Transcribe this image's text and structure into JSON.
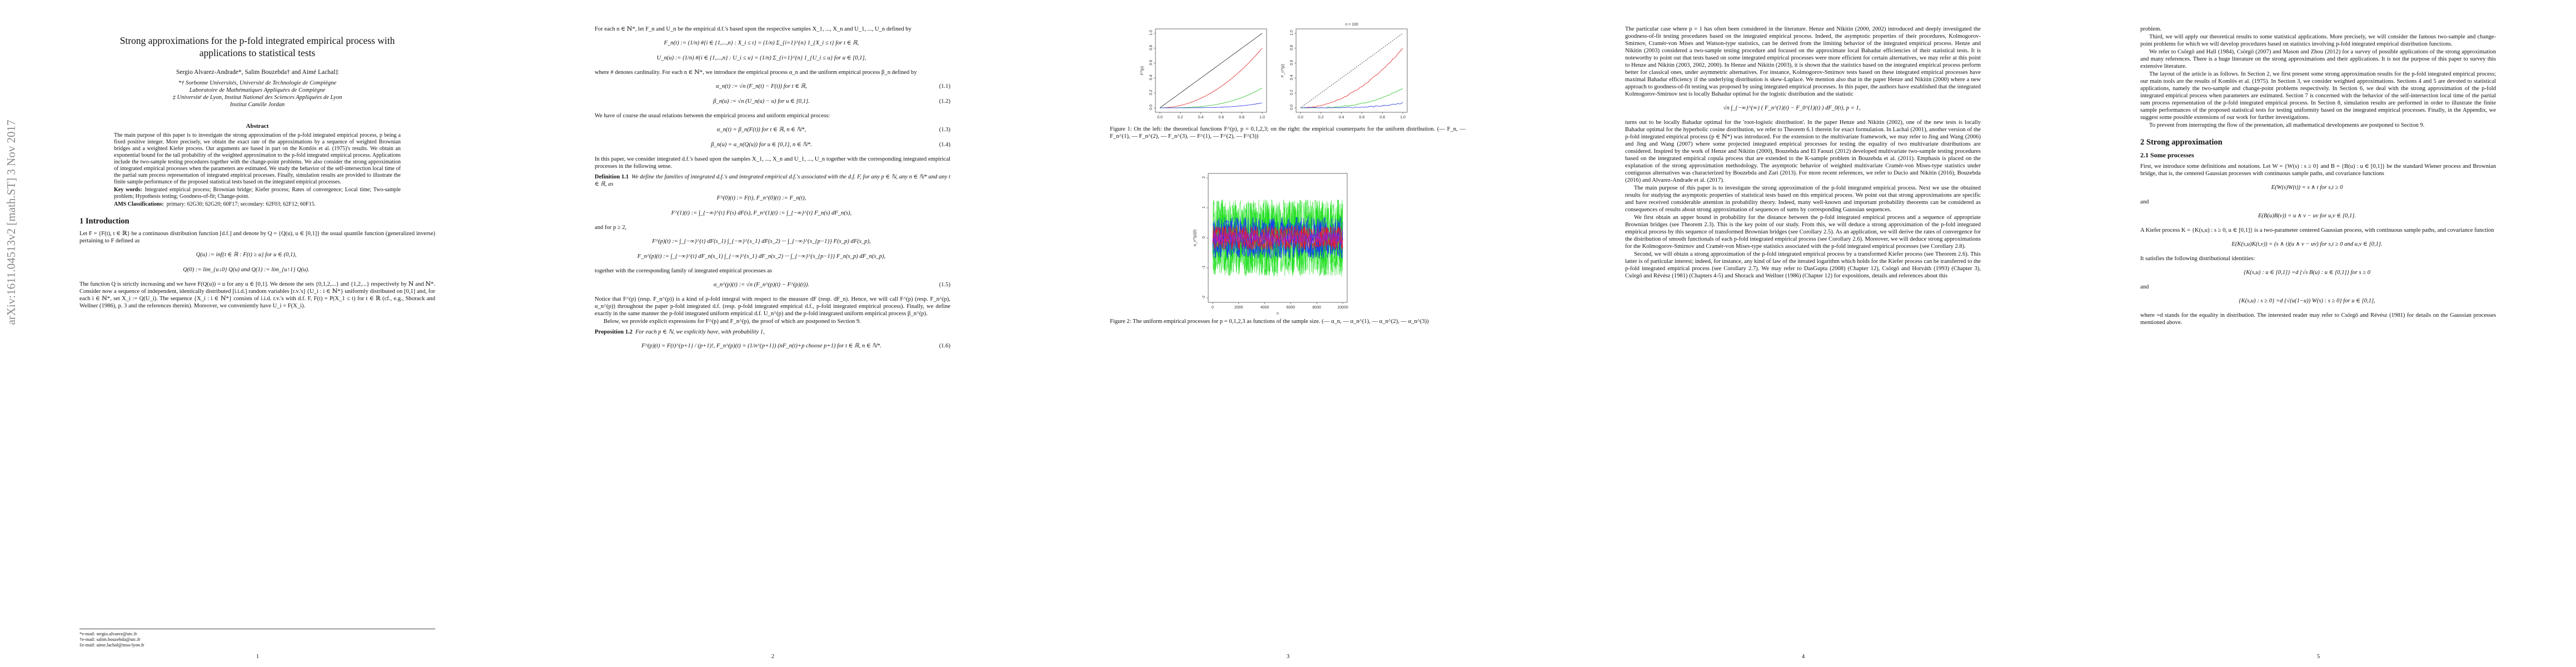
{
  "stamp": "arXiv:1611.04513v2  [math.ST]  3 Nov 2017",
  "pages": [
    {
      "blocks": [
        {
          "title": "Strong approximations for the p-fold integrated empirical process with applications to statistical tests"
        },
        {
          "authors": "Sergio Alvarez-Andrade*,   Salim Bouzebda†   and   Aimé Lachal‡"
        },
        {
          "center": "*† Sorbonne Universités, Université de Technologie de Compiègne"
        },
        {
          "center": "Laboratoire de Mathématiques Appliquées de Compiègne"
        },
        {
          "center": "‡ Université de Lyon, Institut National des Sciences Appliquées de Lyon"
        },
        {
          "center": "Institut Camille Jordan"
        },
        {
          "h3": "Abstract"
        },
        {
          "abstract": "The main purpose of this paper is to investigate the strong approximation of the p-fold integrated empirical process, p being a fixed positive integer. More precisely, we obtain the exact rate of the approximations by a sequence of weighted Brownian bridges and a weighted Kiefer process. Our arguments are based in part on the Komlós et al. (1975)'s results. We obtain an exponential bound for the tail probability of the weighted approximation to the p-fold integrated empirical process. Applications include the two-sample testing procedures together with the change-point problems. We also consider the strong approximation of integrated empirical processes when the parameters are estimated. We study the behavior of the self-intersection local time of the partial sum process representation of integrated empirical processes. Finally, simulation results are provided to illustrate the finite sample performance of the proposed statistical tests based on the integrated empirical processes."
        },
        {
          "lead": "Key words:",
          "abstract": "Integrated empirical process; Brownian bridge; Kiefer process; Rates of convergence; Local time; Two-sample problem; Hypothesis testing; Goodness-of-fit; Change-point."
        },
        {
          "lead": "AMS Classifications:",
          "abstract": "primary: 62G30; 62G20; 60F17; secondary: 62F03; 62F12; 60F15."
        },
        {
          "h1": "1   Introduction"
        },
        {
          "p": "Let F = {F(t), t ∈ ℝ} be a continuous distribution function [d.f.] and denote by Q = {Q(u), u ∈ [0,1]} the usual quantile function (generalized inverse) pertaining to F defined as"
        },
        {
          "eq": "Q(u) := inf{t ∈ ℝ : F(t) ≥ u}   for   u ∈ (0,1),"
        },
        {
          "eq": "Q(0) := lim_{u↓0} Q(u)   and   Q(1) := lim_{u↑1} Q(u)."
        },
        {
          "p": "The function Q is strictly increasing and we have F(Q(u)) = u for any u ∈ [0,1]. We denote the sets {0,1,2,...} and {1,2,...} respectively by ℕ and ℕ*. Consider now a sequence of independent, identically distributed [i.i.d.] random variables [r.v.'s] {U_i : i ∈ ℕ*} uniformly distributed on [0,1] and, for each i ∈ ℕ*, set X_i := Q(U_i). The sequence {X_i : i ∈ ℕ*} consists of i.i.d. r.v.'s with d.f. F, F(t) = P(X_1 ≤ t) for t ∈ ℝ (cf., e.g., Shorack and Wellner (1986), p. 3 and the references therein). Moreover, we conveniently have U_i = F(X_i)."
        }
      ],
      "footnotes": [
        "*e-mail: sergio.alvarez@utc.fr",
        "†e-mail: salim.bouzebda@utc.fr",
        "‡e-mail: aime.lachal@insa-lyon.fr"
      ],
      "number": "1"
    },
    {
      "blocks": [
        {
          "p": "For each n ∈ ℕ*, let F_n and U_n be the empirical d.f.'s based upon the respective samples X_1, ..., X_n and U_1, ..., U_n defined by"
        },
        {
          "eq": "F_n(t) := (1/n) #{i ∈ {1,...,n} : X_i ≤ t} = (1/n) Σ_{i=1}^{n} 1_{X_i ≤ t}   for   t ∈ ℝ,"
        },
        {
          "eq": "U_n(u) := (1/n) #{i ∈ {1,...,n} : U_i ≤ u} = (1/n) Σ_{i=1}^{n} 1_{U_i ≤ u}   for   u ∈ [0,1],"
        },
        {
          "p": "where # denotes cardinality. For each n ∈ ℕ*, we introduce the empirical process α_n and the uniform empirical process β_n defined by"
        },
        {
          "eq": "α_n(t) := √n (F_n(t) − F(t))   for   t ∈ ℝ,",
          "num": "(1.1)"
        },
        {
          "eq": "β_n(u) := √n (U_n(u) − u)   for   u ∈ [0,1].",
          "num": "(1.2)"
        },
        {
          "p": "We have of course the usual relations between the empirical process and uniform empirical process:"
        },
        {
          "eq": "α_n(t) = β_n(F(t))   for   t ∈ ℝ, n ∈ ℕ*,",
          "num": "(1.3)"
        },
        {
          "eq": "β_n(u) = α_n(Q(u))   for   u ∈ [0,1], n ∈ ℕ*.",
          "num": "(1.4)"
        },
        {
          "p": "In this paper, we consider integrated d.f.'s based upon the samples X_1, ..., X_n and U_1, ..., U_n together with the corresponding integrated empirical processes in the following sense."
        },
        {
          "lead": "Definition 1.1",
          "thm": "We define the families of integrated d.f.'s and integrated empirical d.f.'s associated with the d.f. F, for any p ∈ ℕ, any n ∈ ℕ* and any t ∈ ℝ, as"
        },
        {
          "eq": "F^(0)(t) := F(t),     F_n^(0)(t) := F_n(t),"
        },
        {
          "eq": "F^(1)(t) := ∫_{−∞}^{t} F(s) dF(s),     F_n^(1)(t) := ∫_{−∞}^{t} F_n(s) dF_n(s),"
        },
        {
          "p": "and for p ≥ 2,"
        },
        {
          "eq": "F^(p)(t) := ∫_{−∞}^{t} dF(s_1) ∫_{−∞}^{s_1} dF(s_2) ··· ∫_{−∞}^{s_{p−1}} F(s_p) dF(s_p),"
        },
        {
          "eq": "F_n^(p)(t) := ∫_{−∞}^{t} dF_n(s_1) ∫_{−∞}^{s_1} dF_n(s_2) ··· ∫_{−∞}^{s_{p−1}} F_n(s_p) dF_n(s_p),"
        },
        {
          "p": "together with the corresponding family of integrated empirical processes as"
        },
        {
          "eq": "α_n^(p)(t) := √n (F_n^(p)(t) − F^(p)(t)).",
          "num": "(1.5)"
        },
        {
          "p": "Notice that F^(p) (resp. F_n^(p)) is a kind of p-fold integral with respect to the measure dF (resp. dF_n). Hence, we will call F^(p) (resp. F_n^(p), α_n^(p)) throughout the paper p-fold integrated d.f. (resp. p-fold integrated empirical d.f., p-fold integrated empirical process). Finally, we define exactly in the same manner the p-fold integrated uniform empirical d.f. U_n^(p) and the p-fold integrated uniform empirical process β_n^(p)."
        },
        {
          "p": "Below, we provide explicit expressions for F^(p) and F_n^(p), the proof of which are postponed to Section 9."
        },
        {
          "lead": "Proposition 1.2",
          "thm": "For each p ∈ ℕ, we explicitly have, with probability 1,"
        },
        {
          "eq": "F^(p)(t) = F(t)^{p+1} / (p+1)!,     F_n^(p)(t) = (1/n^{p+1}) (nF_n(t)+p choose p+1)   for   t ∈ ℝ, n ∈ ℕ*.",
          "num": "(1.6)"
        }
      ],
      "number": "2"
    },
    {
      "figure1": {
        "left": {
          "ylabel": "F^(p)",
          "xticks": [
            "0.0",
            "0.2",
            "0.4",
            "0.6",
            "0.8",
            "1.0"
          ],
          "yticks": [
            "0.0",
            "0.2",
            "0.4",
            "0.6",
            "0.8",
            "1.0"
          ]
        },
        "right": {
          "title": "n = 100",
          "ylabel": "F_n^(p)",
          "xticks": [
            "0.0",
            "0.2",
            "0.4",
            "0.6",
            "0.8",
            "1.0"
          ],
          "yticks": [
            "0.0",
            "0.2",
            "0.4",
            "0.6",
            "0.8",
            "1.0"
          ]
        },
        "caption": "Figure 1: On the left: the theoretical functions F^(p), p = 0,1,2,3; on the right: the empirical counterparts for the uniform distribution. (— F_n, — F_n^(1), — F_n^(2), — F_n^(3), — F^(1), — F^(2), — F^(3))"
      },
      "figure2": {
        "ylabel": "α_n^(p)(t)",
        "xlabel": "n",
        "xticks": [
          "0",
          "2000",
          "4000",
          "6000",
          "8000",
          "10000"
        ],
        "yticks": [
          "-2",
          "-1",
          "0",
          "1",
          "2"
        ],
        "caption": "Figure 2: The uniform empirical processes for p = 0,1,2,3 as functions of the sample size. (— α_n, — α_n^(1), — α_n^(2), — α_n^(3))"
      },
      "number": "3"
    },
    {
      "blocks": [
        {
          "p": "The particular case where p = 1 has often been considered in the literature. Henze and Nikitin (2000, 2002) introduced and deeply investigated the goodness-of-fit testing procedures based on the integrated empirical process. Indeed, the asymptotic properties of their procedures, Kolmogorov-Smirnov, Cramér-von Mises and Watson-type statistics, can be derived from the limiting behavior of the integrated empirical process. Henze and Nikitin (2003) considered a two-sample testing procedure and focused on the approximate local Bahadur efficiencies of their statistical tests. It is noteworthy to point out that tests based on some integrated empirical processes were more efficient for certain alternatives, we may refer at this point to Henze and Nikitin (2003, 2002, 2000). In Henze and Nikitin (2003), it is shown that the statistics based on the integrated empirical process perform better for classical ones, under asymmetric alternatives. For instance, Kolmogorov-Smirnov tests based on these integrated empirical processes have maximal Bahadur efficiency if the underlying distribution is skew-Laplace. We mention also that in the paper Henze and Nikitin (2000) where a new approach to goodness-of-fit testing was proposed by using integrated empirical processes. In this paper, the authors have established that the integrated Kolmogorov-Smirnov test is locally Bahadur optimal for the logistic distribution and the statistic"
        },
        {
          "eq": "√n ∫_{−∞}^{∞} ( F_n^(1)(t) − F_0^(1)(t) ) dF_0(t),   p = 1,"
        },
        {
          "p": "turns out to be locally Bahadur optimal for the 'root-logistic distribution'. In the paper Henze and Nikitin (2002), one of the new tests is locally Bahadur optimal for the hyperbolic cosine distribution, we refer to Theorem 6.1 therein for exact formulation. In Lachal (2001), another version of the p-fold integrated empirical process (p ∈ ℕ*) was introduced. For the extension to the multivariate framework, we may refer to Jing and Wang (2006) and Jing and Wang (2007) where some projected integrated empirical processes for testing the equality of two multivariate distributions are considered. Inspired by the work of Henze and Nikitin (2000), Bouzebda and El Faouzi (2012) developed multivariate two-sample testing procedures based on the integrated empirical copula process that are extended to the K-sample problem in Bouzebda et al. (2011). Emphasis is placed on the explanation of the strong approximation methodology. The asymptotic behavior of weighted multivariate Cramér-von Mises-type statistics under contiguous alternatives was characterized by Bouzebda and Zari (2013). For more recent references, we refer to Ducio and Nikitin (2016), Bouzebda (2016) and Alvarez-Andrade et al. (2017)."
        },
        {
          "p": "The main purpose of this paper is to investigate the strong approximation of the p-fold integrated empirical process. Next we use the obtained results for studying the asymptotic properties of statistical tests based on this empirical process. We point out that strong approximations are specific and have received considerable attention in probability theory. Indeed, many well-known and important probability theorems can be considered as consequences of results about strong approximation of sequences of sums by corresponding Gaussian sequences."
        },
        {
          "p": "We first obtain an upper bound in probability for the distance between the p-fold integrated empirical process and a sequence of appropriate Brownian bridges (see Theorem 2.3). This is the key point of our study. From this, we will deduce a strong approximation of the p-fold integrated empirical process by this sequence of transformed Brownian bridges (see Corollary 2.5). As an application, we will derive the rates of convergence for the distribution of smooth functionals of each p-fold integrated empirical process (see Corollary 2.6). Moreover, we will deduce strong approximations for the Kolmogorov-Smirnov and Cramér-von Mises-type statistics associated with the p-fold integrated empirical processes (see Corollary 2.8)."
        },
        {
          "p": "Second, we will obtain a strong approximation of the p-fold integrated empirical process by a transformed Kiefer process (see Theorem 2.6). This latter is of particular interest; indeed, for instance, any kind of law of the iterated logarithm which holds for the Kiefer process can be transferred to the p-fold integrated empirical process (see Corollary 2.7). We may refer to DasGupta (2008) (Chapter 12), Csörgő and Horváth (1993) (Chapter 3), Csörgő and Révész (1981) (Chapters 4-5) and Shorack and Wellner (1986) (Chapter 12) for expositions, details and references about this"
        }
      ],
      "number": "4"
    },
    {
      "blocks": [
        {
          "p": "problem."
        },
        {
          "p": "Third, we will apply our theoretical results to some statistical applications. More precisely, we will consider the famous two-sample and change-point problems for which we will develop procedures based on statistics involving p-fold integrated empirical distribution functions."
        },
        {
          "p": "We refer to Csörgő and Hall (1984), Csörgő (2007) and Mason and Zhou (2012) for a survey of possible applications of the strong approximation and many references. There is a huge literature on the strong approximations and their applications. It is not the purpose of this paper to survey this extensive literature."
        },
        {
          "p": "The layout of the article is as follows. In Section 2, we first present some strong approximation results for the p-fold integrated empirical process; our main tools are the results of Komlós et al. (1975). In Section 3, we consider weighted approximations. Sections 4 and 5 are devoted to statistical applications, namely the two-sample and change-point problems respectively. In Section 6, we deal with the strong approximation of the p-fold integrated empirical process when parameters are estimated. Section 7 is concerned with the behavior of the self-intersection local time of the partial sum process representation of the p-fold integrated empirical process. In Section 8, simulation results are performed in order to illustrate the finite sample performances of the proposed statistical tests for testing uniformity based on the integrated empirical processes. Finally, in the Appendix, we suggest some possible extensions of our work for further investigations."
        },
        {
          "p": "To prevent from interrupting the flow of the presentation, all mathematical developments are postponed to Section 9."
        },
        {
          "h1": "2   Strong approximation"
        },
        {
          "h2": "2.1   Some processes"
        },
        {
          "p": "First, we introduce some definitions and notations. Let W = {W(s) : s ≥ 0} and B = {B(u) : u ∈ [0,1]} be the standard Wiener process and Brownian bridge, that is, the centered Gaussian processes with continuous sample paths, and covariance functions"
        },
        {
          "eq": "E(W(s)W(t)) = s ∧ t   for   s,t ≥ 0"
        },
        {
          "p": "and"
        },
        {
          "eq": "E(B(u)B(v)) = u ∧ v − uv   for   u,v ∈ [0,1]."
        },
        {
          "p": "A Kiefer process K = {K(s,u) : s ≥ 0, u ∈ [0,1]} is a two-parameter centered Gaussian process, with continuous sample paths, and covariance function"
        },
        {
          "eq": "E(K(s,u)K(t,v)) = (s ∧ t)(u ∧ v − uv)   for   s,t ≥ 0   and   u,v ∈ [0,1]."
        },
        {
          "p": "It satisfies the following distributional identities:"
        },
        {
          "eq": "{K(s,u) : u ∈ [0,1]} =d {√s B(u) : u ∈ [0,1]}   for   s ≥ 0"
        },
        {
          "p": "and"
        },
        {
          "eq": "{K(s,u) : s ≥ 0} =d {√(u(1−u)) W(s) : s ≥ 0}   for   u ∈ [0,1],"
        },
        {
          "p": "where =d stands for the equality in distribution. The interested reader may refer to Csörgő and Révész (1981) for details on the Gaussian processes mentioned above."
        }
      ],
      "number": "5"
    }
  ]
}
